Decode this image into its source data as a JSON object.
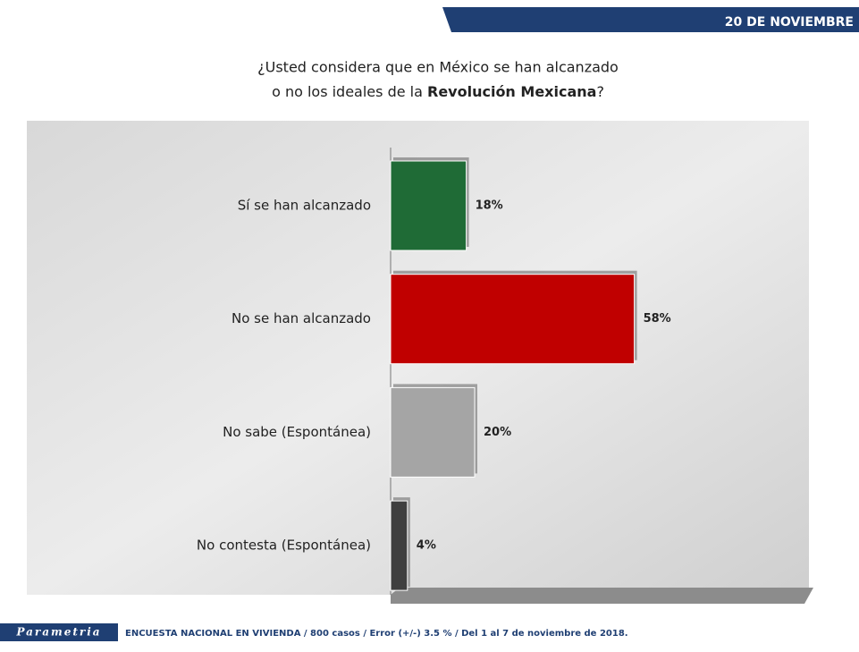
{
  "header": {
    "date": "20 DE NOVIEMBRE"
  },
  "chart_data": {
    "type": "bar",
    "orientation": "horizontal",
    "title_line1": "¿Usted considera que en México se han alcanzado",
    "title_line2": "o no los ideales de la ",
    "title_emphasis": "Revolución Mexicana",
    "title_end": "?",
    "categories": [
      "Sí se han alcanzado",
      "No se han alcanzado",
      "No sabe (Espontánea)",
      "No contesta (Espontánea)"
    ],
    "values": [
      18,
      58,
      20,
      4
    ],
    "value_labels": [
      "18%",
      "58%",
      "20%",
      "4%"
    ],
    "colors": [
      "#1f6b36",
      "#c00000",
      "#a5a5a5",
      "#3f3f3f"
    ]
  },
  "footer": {
    "brand": "Parametria",
    "note": "ENCUESTA NACIONAL EN VIVIENDA / 800 casos / Error (+/-) 3.5 % / Del 1 al 7 de noviembre de 2018."
  }
}
